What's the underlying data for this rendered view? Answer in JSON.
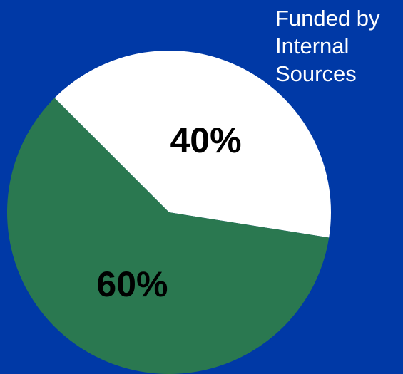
{
  "background_color": "#0039a6",
  "chart_data": {
    "type": "pie",
    "slices": [
      {
        "value": 40,
        "label": "40%",
        "color": "#ffffff"
      },
      {
        "value": 60,
        "label": "60%",
        "color": "#2a7850"
      }
    ],
    "start_angle_deg": -135,
    "legend": {
      "placement": "top-right",
      "lines": [
        "Funded by",
        "Internal",
        "Sources"
      ]
    }
  }
}
